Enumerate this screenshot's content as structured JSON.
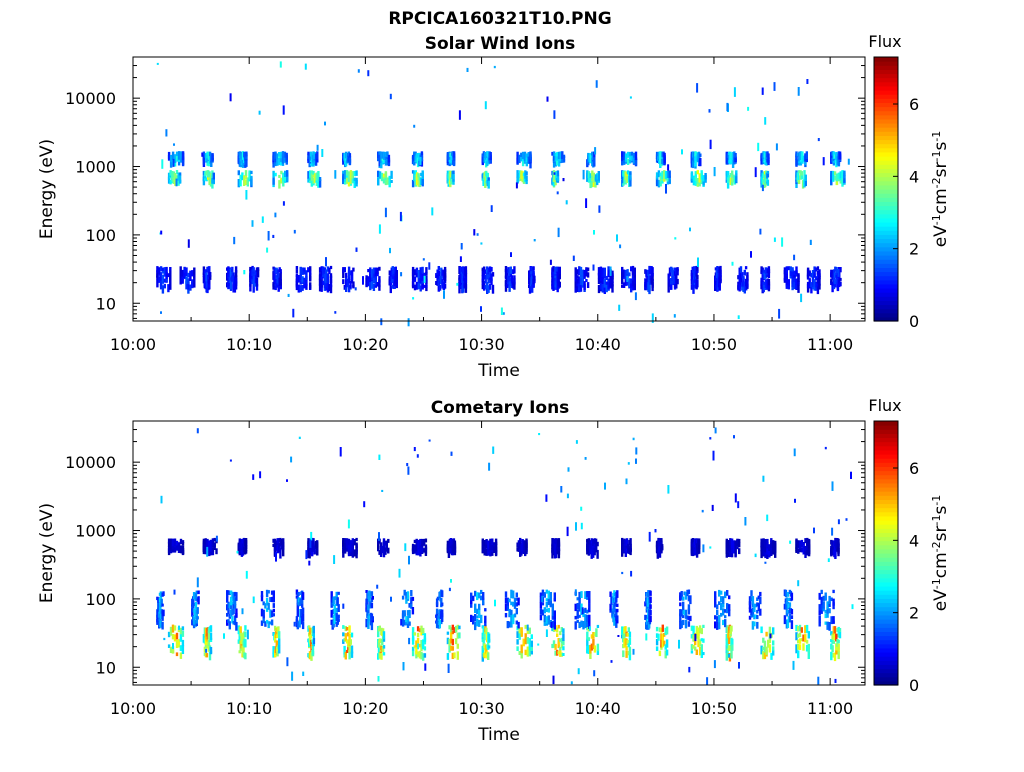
{
  "figure": {
    "title": "RPCICA160321T10.PNG"
  },
  "chart_data": [
    {
      "type": "heatmap",
      "title": "Solar Wind Ions",
      "xlabel": "Time",
      "ylabel": "Energy (eV)",
      "y_scale": "log",
      "ylim": [
        5.5,
        40000
      ],
      "xlim": [
        "10:00",
        "11:03"
      ],
      "x_ticks": [
        "10:00",
        "10:10",
        "10:20",
        "10:30",
        "10:40",
        "10:50",
        "11:00"
      ],
      "y_ticks": [
        "10",
        "100",
        "1000",
        "10000"
      ],
      "colorbar": {
        "label": "Flux",
        "unit_label": "eV-1cm-2sr-1s-1",
        "ticks": [
          "0",
          "2",
          "4",
          "6"
        ],
        "range": [
          0,
          7.3
        ],
        "colormap": "jet"
      },
      "bands": [
        {
          "energy_range": [
            550,
            800
          ],
          "flux_peak": 4.5,
          "period_min": 3,
          "start": "10:03",
          "end": "11:02"
        },
        {
          "energy_range": [
            1100,
            1500
          ],
          "flux_peak": 3.0,
          "period_min": 3,
          "start": "10:03",
          "end": "11:02"
        },
        {
          "energy_range": [
            16,
            32
          ],
          "flux_peak": 1.5,
          "period_min": 2,
          "start": "10:02",
          "end": "11:02"
        }
      ]
    },
    {
      "type": "heatmap",
      "title": "Cometary Ions",
      "xlabel": "Time",
      "ylabel": "Energy (eV)",
      "y_scale": "log",
      "ylim": [
        5.5,
        40000
      ],
      "xlim": [
        "10:00",
        "11:03"
      ],
      "x_ticks": [
        "10:00",
        "10:10",
        "10:20",
        "10:30",
        "10:40",
        "10:50",
        "11:00"
      ],
      "y_ticks": [
        "10",
        "100",
        "1000",
        "10000"
      ],
      "colorbar": {
        "label": "Flux",
        "unit_label": "eV-1cm-2sr-1s-1",
        "ticks": [
          "0",
          "2",
          "4",
          "6"
        ],
        "range": [
          0,
          7.3
        ],
        "colormap": "jet"
      },
      "bands": [
        {
          "energy_range": [
            14,
            40
          ],
          "flux_peak": 6.0,
          "period_min": 3,
          "start": "10:03",
          "end": "11:02"
        },
        {
          "energy_range": [
            40,
            130
          ],
          "flux_peak": 2.5,
          "period_min": 3,
          "start": "10:02",
          "end": "11:02"
        },
        {
          "energy_range": [
            450,
            700
          ],
          "flux_peak": 0.8,
          "period_min": 3,
          "start": "10:03",
          "end": "11:02"
        }
      ]
    }
  ]
}
